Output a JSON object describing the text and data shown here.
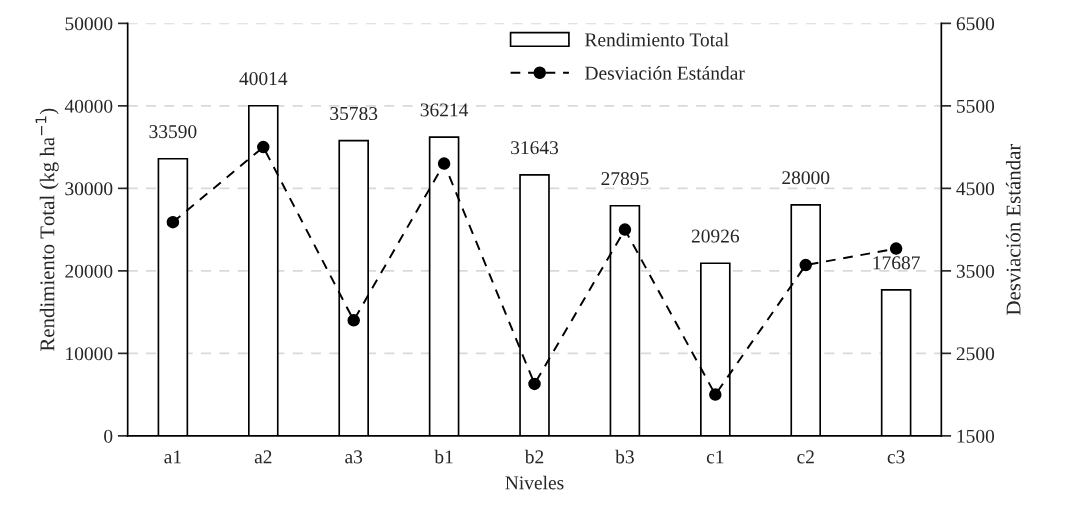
{
  "chart_data": {
    "type": "bar",
    "xlabel": "Niveles",
    "ylabel": "Rendimiento Total (kg ha$^{−1}$)",
    "y2label": "Desviación Estándar",
    "categories": [
      "a1",
      "a2",
      "a3",
      "b1",
      "b2",
      "b3",
      "c1",
      "c2",
      "c3"
    ],
    "series": [
      {
        "name": "Rendimiento Total",
        "color": "#ffffff",
        "values": [
          33590,
          40014,
          35783,
          36214,
          31643,
          27895,
          20926,
          28000,
          17687
        ],
        "value_labels": [
          "33590",
          "40014",
          "35783",
          "36214",
          "31643",
          "27895",
          "20926",
          "28000",
          "17687"
        ]
      },
      {
        "name": "Desviación Estándar",
        "type": "line",
        "axis": "y2",
        "color": "#000000",
        "marker": "circle",
        "line_style": "dashed",
        "values": [
          4090,
          5000,
          2900,
          4800,
          2130,
          4000,
          2000,
          3570,
          3770
        ]
      }
    ],
    "ylim": [
      0,
      50000
    ],
    "yticks": [
      0,
      10000,
      20000,
      30000,
      40000,
      50000
    ],
    "y2lim": [
      1500,
      6500
    ],
    "y2ticks": [
      1500,
      2500,
      3500,
      4500,
      5500,
      6500
    ],
    "grid": "y",
    "legend": "top right"
  }
}
